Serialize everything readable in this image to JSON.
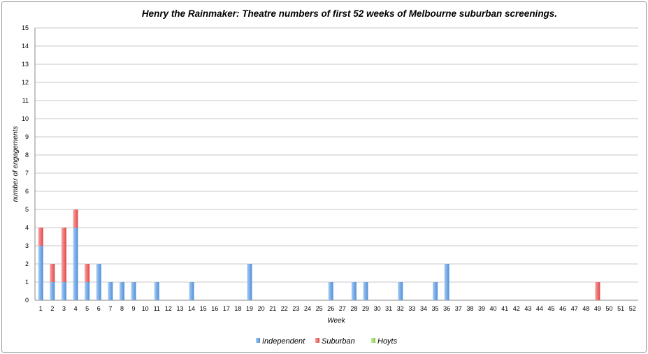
{
  "chart_data": {
    "type": "bar",
    "stacked": true,
    "title": "Henry the Rainmaker: Theatre numbers of first 52 weeks of Melbourne suburban screenings.",
    "xlabel": "Week",
    "ylabel": "number of engagements",
    "ylim": [
      0,
      15
    ],
    "grid": true,
    "legend_position": "bottom",
    "categories": [
      "1",
      "2",
      "3",
      "4",
      "5",
      "6",
      "7",
      "8",
      "9",
      "10",
      "11",
      "12",
      "13",
      "14",
      "15",
      "16",
      "17",
      "18",
      "19",
      "20",
      "21",
      "22",
      "23",
      "24",
      "25",
      "26",
      "27",
      "28",
      "29",
      "30",
      "31",
      "32",
      "33",
      "34",
      "35",
      "36",
      "37",
      "38",
      "39",
      "40",
      "41",
      "42",
      "43",
      "44",
      "45",
      "46",
      "47",
      "48",
      "49",
      "50",
      "51",
      "52"
    ],
    "series": [
      {
        "name": "Independent",
        "color": "#5b9bd5",
        "values": [
          3,
          1,
          1,
          4,
          1,
          2,
          1,
          1,
          1,
          0,
          1,
          0,
          0,
          1,
          0,
          0,
          0,
          0,
          2,
          0,
          0,
          0,
          0,
          0,
          0,
          1,
          0,
          1,
          1,
          0,
          0,
          1,
          0,
          0,
          1,
          2,
          0,
          0,
          0,
          0,
          0,
          0,
          0,
          0,
          0,
          0,
          0,
          0,
          0,
          0,
          0,
          0
        ]
      },
      {
        "name": "Suburban",
        "color": "#e0464a",
        "values": [
          1,
          1,
          3,
          1,
          1,
          0,
          0,
          0,
          0,
          0,
          0,
          0,
          0,
          0,
          0,
          0,
          0,
          0,
          0,
          0,
          0,
          0,
          0,
          0,
          0,
          0,
          0,
          0,
          0,
          0,
          0,
          0,
          0,
          0,
          0,
          0,
          0,
          0,
          0,
          0,
          0,
          0,
          0,
          0,
          0,
          0,
          0,
          0,
          1,
          0,
          0,
          0
        ]
      },
      {
        "name": "Hoyts",
        "color": "#8fd14f",
        "values": [
          0,
          0,
          0,
          0,
          0,
          0,
          0,
          0,
          0,
          0,
          0,
          0,
          0,
          0,
          0,
          0,
          0,
          0,
          0,
          0,
          0,
          0,
          0,
          0,
          0,
          0,
          0,
          0,
          0,
          0,
          0,
          0,
          0,
          0,
          0,
          0,
          0,
          0,
          0,
          0,
          0,
          0,
          0,
          0,
          0,
          0,
          0,
          0,
          0,
          0,
          0,
          0
        ]
      }
    ]
  }
}
